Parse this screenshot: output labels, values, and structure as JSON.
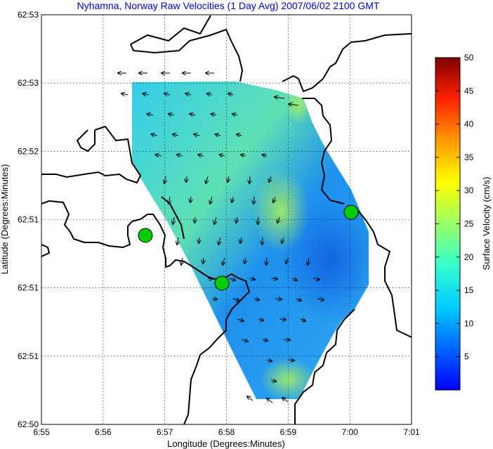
{
  "title": "Nyhamna, Norway Raw Velocities (1 Day Avg) 2007/06/02 2100 GMT",
  "x_axis": {
    "label": "Longitude (Degrees:Minutes)",
    "ticks": [
      "6:55",
      "6:56",
      "6:57",
      "6:58",
      "6:59",
      "7:00",
      "7:01"
    ]
  },
  "y_axis": {
    "label": "Latitude (Degrees:Minutes)",
    "ticks": [
      "62:53",
      "62:53",
      "62:52",
      "62:51",
      "62:51",
      "62:51",
      "62:50"
    ]
  },
  "colorbar": {
    "label": "Surface Velocity (cm/s)",
    "ticks": [
      "50",
      "45",
      "40",
      "35",
      "30",
      "25",
      "20",
      "15",
      "10",
      "5"
    ],
    "range": [
      0,
      50
    ],
    "colormap": "jet"
  },
  "grid": true,
  "colors": {
    "title": "#0000cc",
    "station": "#00cc00",
    "coastline": "#000000"
  },
  "stations": [
    "station-west",
    "station-south",
    "station-east"
  ]
}
